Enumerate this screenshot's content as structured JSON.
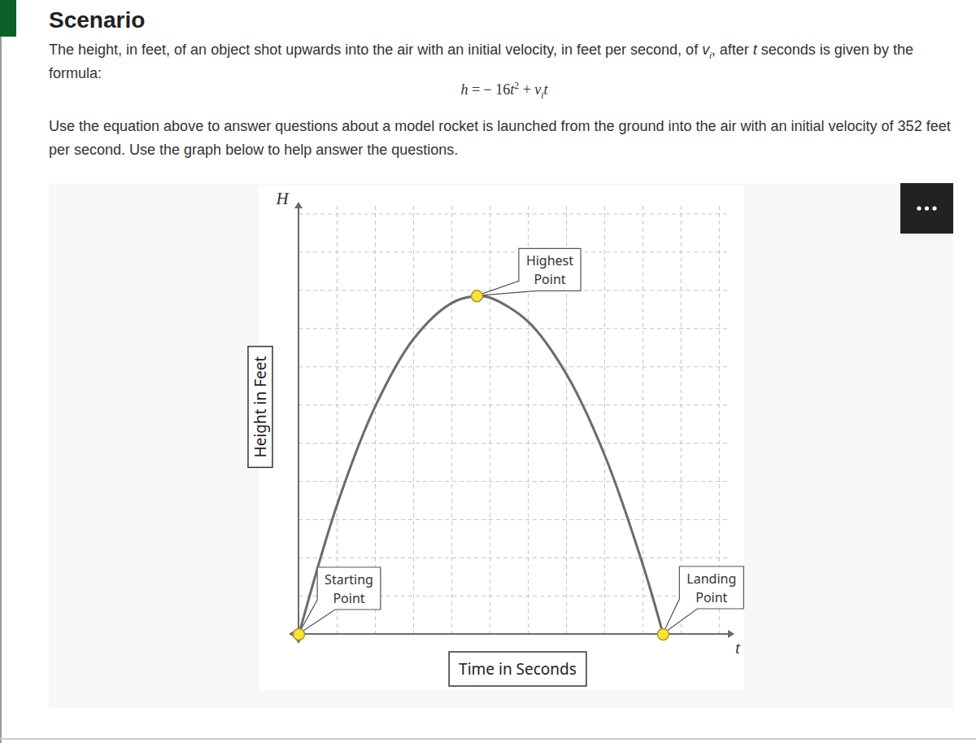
{
  "header": {
    "title": "Scenario",
    "paragraph1": [
      {
        "text": "The height, in feet, of an object shot upwards into the air with an initial velocity, in feet per second, of "
      },
      {
        "em": "v"
      },
      {
        "sub": "i"
      },
      {
        "text": ", after "
      },
      {
        "em": "t"
      },
      {
        "text": " seconds is given by the formula:"
      }
    ],
    "formula": [
      {
        "em": "h"
      },
      {
        "text": " = − 16"
      },
      {
        "em": "t"
      },
      {
        "sup": "2"
      },
      {
        "text": " + "
      },
      {
        "em": "v"
      },
      {
        "sub": "i"
      },
      {
        "em": "t"
      }
    ],
    "paragraph2": [
      {
        "text": "Use the equation above to answer questions about a model rocket is launched from the ground into the air with an initial velocity of 352 feet per second. Use the graph below to help answer the questions."
      }
    ]
  },
  "chart_data": {
    "type": "line",
    "xlabel": "Time in Seconds",
    "ylabel": "Height in Feet",
    "xsymbol": "t",
    "ysymbol": "H",
    "x": [
      0,
      1,
      2,
      3,
      4,
      4.66,
      5,
      6,
      7,
      8,
      9,
      9.53
    ],
    "values": [
      0,
      3.39,
      5.97,
      7.73,
      8.67,
      8.85,
      8.81,
      8.18,
      6.81,
      4.69,
      1.82,
      0
    ],
    "color": "#6b6b6b",
    "xlim": [
      0,
      11.3
    ],
    "ylim": [
      0,
      11.2
    ],
    "xticks": [
      1,
      2,
      3,
      4,
      5,
      6,
      7,
      8,
      9,
      10,
      11
    ],
    "yticks": [
      1,
      2,
      3,
      4,
      5,
      6,
      7,
      8,
      9,
      10,
      11
    ],
    "grid": true,
    "tick_labels": false,
    "annotations": [
      {
        "text": "Starting Point",
        "x": 0,
        "y": 0
      },
      {
        "text": "Highest Point",
        "x": 4.66,
        "y": 8.85
      },
      {
        "text": "Landing Point",
        "x": 9.53,
        "y": 0
      }
    ]
  }
}
